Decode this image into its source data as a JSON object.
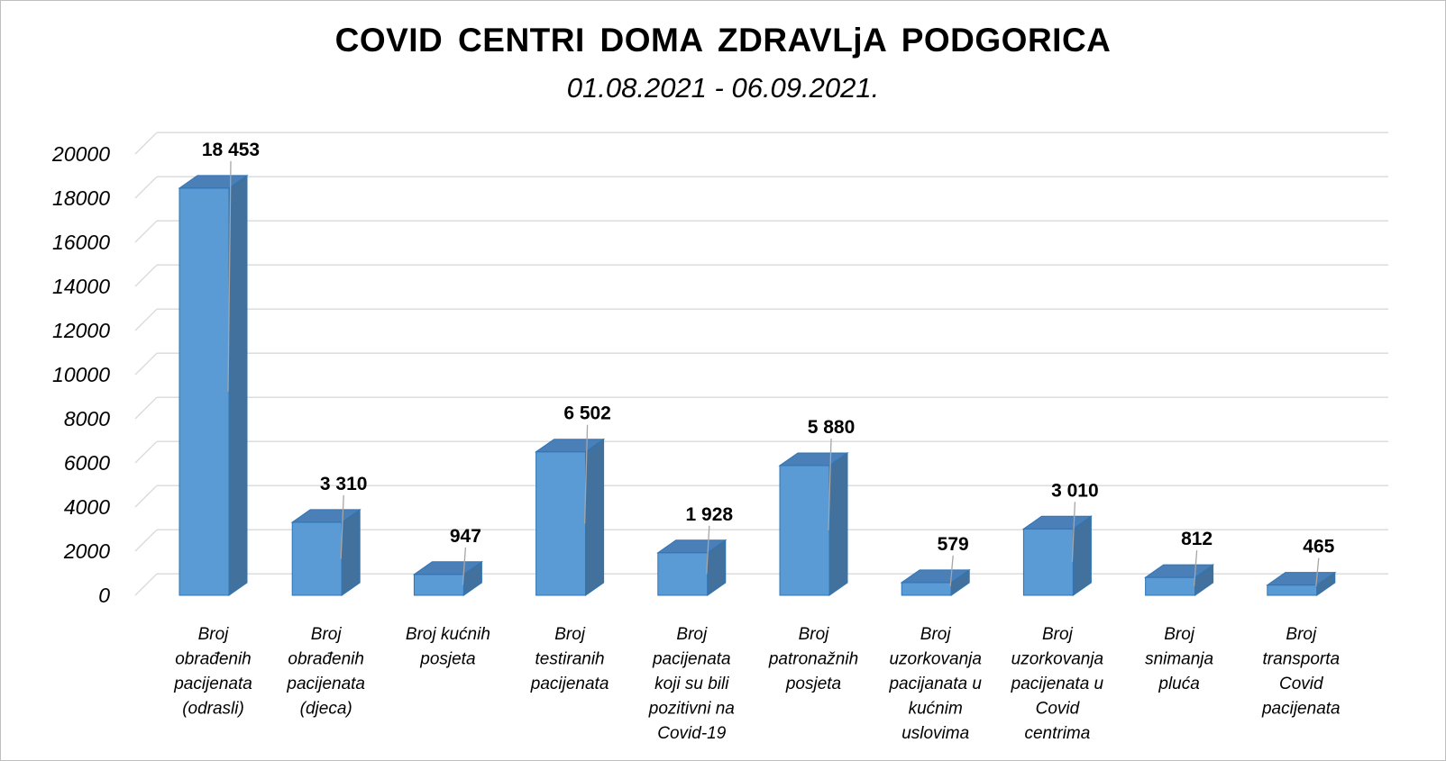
{
  "chart_data": {
    "type": "bar",
    "title": "COVID  CENTRI  DOMA  ZDRAVLjA  PODGORICA",
    "subtitle": "01.08.2021 - 06.09.2021.",
    "categories": [
      [
        "Broj",
        "obrađenih",
        "pacijenata",
        "(odrasli)"
      ],
      [
        "Broj",
        "obrađenih",
        "pacijenata",
        "(djeca)"
      ],
      [
        "Broj kućnih",
        "posjeta"
      ],
      [
        "Broj",
        "testiranih",
        "pacijenata"
      ],
      [
        "Broj",
        "pacijenata",
        "koji su bili",
        "pozitivni na",
        "Covid-19"
      ],
      [
        "Broj",
        "patronažnih",
        "posjeta"
      ],
      [
        "Broj",
        "uzorkovanja",
        "pacijanata u",
        "kućnim",
        "uslovima"
      ],
      [
        "Broj",
        "uzorkovanja",
        "pacijenata u",
        "Covid",
        "centrima"
      ],
      [
        "Broj",
        "snimanja",
        "pluća"
      ],
      [
        "Broj",
        "transporta",
        "Covid",
        "pacijenata"
      ]
    ],
    "values": [
      18453,
      3310,
      947,
      6502,
      1928,
      5880,
      579,
      3010,
      812,
      465
    ],
    "value_labels": [
      "18 453",
      "3 310",
      "947",
      "6 502",
      "1 928",
      "5 880",
      "579",
      "3 010",
      "812",
      "465"
    ],
    "yticks": [
      "0",
      "2000",
      "4000",
      "6000",
      "8000",
      "10000",
      "12000",
      "14000",
      "16000",
      "18000",
      "20000"
    ],
    "ylim": [
      0,
      20000
    ],
    "grid": true,
    "legend": "none",
    "bar_color": "#5b9bd5",
    "bar_side_color": "#41719c",
    "bar_top_color": "#4a7fb8"
  }
}
